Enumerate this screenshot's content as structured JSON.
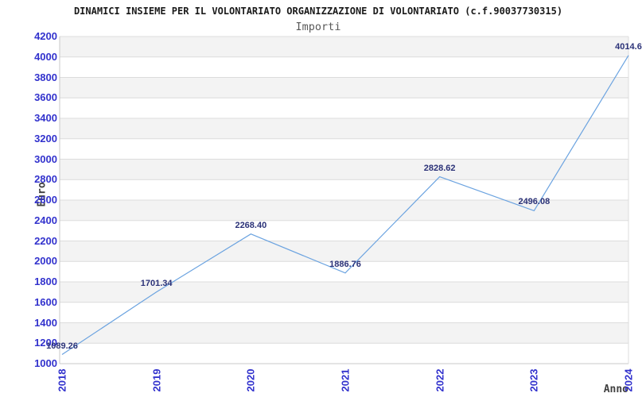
{
  "chart_data": {
    "type": "line",
    "title": "DINAMICI INSIEME PER IL VOLONTARIATO ORGANIZZAZIONE DI VOLONTARIATO (c.f.90037730315)",
    "subtitle": "Importi",
    "xlabel": "Anno",
    "ylabel": "Euro",
    "x": [
      "2018",
      "2019",
      "2020",
      "2021",
      "2022",
      "2023",
      "2024"
    ],
    "values": [
      1089.26,
      1701.34,
      2268.4,
      1886.76,
      2828.62,
      2496.08,
      4014.6
    ],
    "point_labels": [
      "1089.26",
      "1701.34",
      "2268.40",
      "1886.76",
      "2828.62",
      "2496.08",
      "4014.6"
    ],
    "yticks": [
      1000,
      1200,
      1400,
      1600,
      1800,
      2000,
      2200,
      2400,
      2600,
      2800,
      3000,
      3200,
      3400,
      3600,
      3800,
      4000,
      4200
    ],
    "ylim": [
      1000,
      4200
    ],
    "grid": "horizontal-alternating-bands",
    "legend": "none",
    "markers": "none",
    "colors": {
      "line": "#6BA3E0",
      "tick_label": "#3232CD",
      "data_label": "#2B3278",
      "band_fill": "#F3F3F3",
      "band_alt_fill": "#FFFFFF",
      "gridline": "#DCDCDC",
      "axis_line": "#C8C8C8",
      "axis_title": "#404040",
      "subtitle_text": "#595959",
      "title_text": "#1A1A1A"
    }
  }
}
